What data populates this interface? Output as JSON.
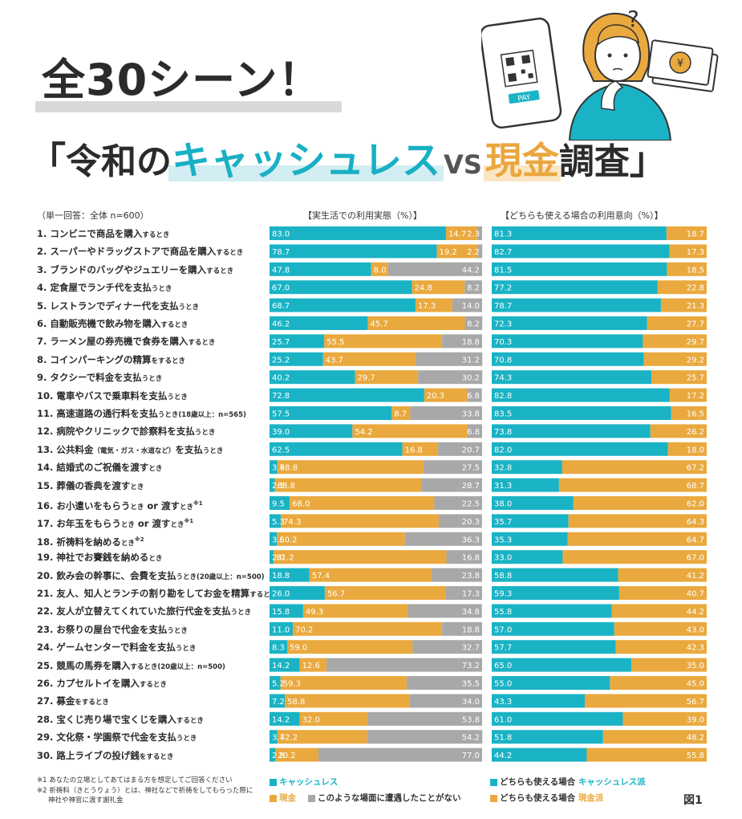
{
  "title": {
    "line1": "全30シーン！",
    "bracket_open": "「",
    "part1": "令和の",
    "cashless_word": "キャッシュレス",
    "vs": "VS",
    "cash_word": "現金",
    "part2": "調査",
    "bracket_close": "」"
  },
  "illustration": {
    "phone_label": "PAY",
    "question": "?",
    "yen": "¥"
  },
  "basis_note": "（単一回答：全体 n=600）",
  "colors": {
    "cashless": "#1ab3c5",
    "cash": "#eaa93e",
    "none": "#a8a8a8",
    "text_on_bar": "#ffffff"
  },
  "chart_data": [
    {
      "type": "bar",
      "orientation": "horizontal",
      "stacked": true,
      "title": "【実生活での利用実態（%）】",
      "series": [
        {
          "name": "キャッシュレス",
          "color": "#1ab3c5",
          "values": [
            83.0,
            78.7,
            47.8,
            67.0,
            68.7,
            46.2,
            25.7,
            25.2,
            40.2,
            72.8,
            57.5,
            39.0,
            62.5,
            3.7,
            2.5,
            9.5,
            5.3,
            3.5,
            2.0,
            18.8,
            26.0,
            15.8,
            11.0,
            8.3,
            14.2,
            5.2,
            7.2,
            14.2,
            3.7,
            2.8
          ]
        },
        {
          "name": "現金",
          "color": "#eaa93e",
          "values": [
            14.7,
            19.2,
            8.0,
            24.8,
            17.3,
            45.7,
            55.5,
            43.7,
            29.7,
            20.3,
            8.7,
            54.2,
            16.8,
            68.8,
            68.8,
            68.0,
            74.3,
            60.2,
            81.2,
            57.4,
            56.7,
            49.3,
            70.2,
            59.0,
            12.6,
            59.3,
            58.8,
            32.0,
            42.2,
            20.2
          ]
        },
        {
          "name": "このような場面に遭遇したことがない",
          "color": "#a8a8a8",
          "values": [
            2.3,
            2.2,
            44.2,
            8.2,
            14.0,
            8.2,
            18.8,
            31.2,
            30.2,
            6.8,
            33.8,
            6.8,
            20.7,
            27.5,
            28.7,
            22.5,
            20.3,
            36.3,
            16.8,
            23.8,
            17.3,
            34.8,
            18.8,
            32.7,
            73.2,
            35.5,
            34.0,
            53.8,
            54.2,
            77.0
          ]
        }
      ]
    },
    {
      "type": "bar",
      "orientation": "horizontal",
      "stacked": true,
      "title": "【どちらも使える場合の利用意向（%）】",
      "series": [
        {
          "name": "どちらも使える場合 キャッシュレス派",
          "color": "#1ab3c5",
          "values": [
            81.3,
            82.7,
            81.5,
            77.2,
            78.7,
            72.3,
            70.3,
            70.8,
            74.3,
            82.8,
            83.5,
            73.8,
            82.0,
            32.8,
            31.3,
            38.0,
            35.7,
            35.3,
            33.0,
            58.8,
            59.3,
            55.8,
            57.0,
            57.7,
            65.0,
            55.0,
            43.3,
            61.0,
            51.8,
            44.2
          ]
        },
        {
          "name": "どちらも使える場合 現金派",
          "color": "#eaa93e",
          "values": [
            18.7,
            17.3,
            18.5,
            22.8,
            21.3,
            27.7,
            29.7,
            29.2,
            25.7,
            17.2,
            16.5,
            26.2,
            18.0,
            67.2,
            68.7,
            62.0,
            64.3,
            64.7,
            67.0,
            41.2,
            40.7,
            44.2,
            43.0,
            42.3,
            35.0,
            45.0,
            56.7,
            39.0,
            48.2,
            55.8
          ]
        }
      ]
    }
  ],
  "rows": [
    {
      "main": "1. コンビニで商品を購入",
      "small": "するとき",
      "tail": "",
      "sup": ""
    },
    {
      "main": "2. スーパーやドラッグストアで商品を購入",
      "small": "するとき",
      "tail": "",
      "sup": ""
    },
    {
      "main": "3. ブランドのバッグやジュエリーを購入",
      "small": "するとき",
      "tail": "",
      "sup": ""
    },
    {
      "main": "4. 定食屋でランチ代を支払",
      "small": "うとき",
      "tail": "",
      "sup": ""
    },
    {
      "main": "5. レストランでディナー代を支払",
      "small": "うとき",
      "tail": "",
      "sup": ""
    },
    {
      "main": "6. 自動販売機で飲み物を購入",
      "small": "するとき",
      "tail": "",
      "sup": ""
    },
    {
      "main": "7. ラーメン屋の券売機で食券を購入",
      "small": "するとき",
      "tail": "",
      "sup": ""
    },
    {
      "main": "8. コインパーキングの精算",
      "small": "をするとき",
      "tail": "",
      "sup": ""
    },
    {
      "main": "9. タクシーで料金を支払",
      "small": "うとき",
      "tail": "",
      "sup": ""
    },
    {
      "main": "10. 電車やバスで乗車料を支払",
      "small": "うとき",
      "tail": "",
      "sup": ""
    },
    {
      "main": "11. 高速道路の通行料を支払",
      "small": "うとき(18歳以上：n=565)",
      "tail": "",
      "sup": ""
    },
    {
      "main": "12. 病院やクリニックで診察料を支払",
      "small": "うとき",
      "tail": "",
      "sup": ""
    },
    {
      "main": "13. 公共料金",
      "small": "（電気・ガス・水道など）",
      "tail": "を支払",
      "small2": "うとき",
      "sup": ""
    },
    {
      "main": "14. 結婚式のご祝儀を渡す",
      "small": "とき",
      "tail": "",
      "sup": ""
    },
    {
      "main": "15. 葬儀の香典を渡す",
      "small": "とき",
      "tail": "",
      "sup": ""
    },
    {
      "main": "16. お小遣いをもらう",
      "small": "とき",
      "tail": " or 渡す",
      "small2": "とき",
      "sup": "※1"
    },
    {
      "main": "17. お年玉をもらう",
      "small": "とき",
      "tail": " or 渡す",
      "small2": "とき",
      "sup": "※1"
    },
    {
      "main": "18. 祈祷料を納める",
      "small": "とき",
      "tail": "",
      "sup": "※2"
    },
    {
      "main": "19. 神社でお賽銭を納める",
      "small": "とき",
      "tail": "",
      "sup": ""
    },
    {
      "main": "20. 飲み会の幹事に、会費を支払",
      "small": "うとき(20歳以上：n=500)",
      "tail": "",
      "sup": ""
    },
    {
      "main": "21. 友人、知人とランチの割り勘をしてお金を精算",
      "small": "するとき",
      "tail": "",
      "sup": ""
    },
    {
      "main": "22. 友人が立替えてくれていた旅行代金を支払",
      "small": "うとき",
      "tail": "",
      "sup": ""
    },
    {
      "main": "23. お祭りの屋台で代金を支払",
      "small": "うとき",
      "tail": "",
      "sup": ""
    },
    {
      "main": "24. ゲームセンターで料金を支払",
      "small": "うとき",
      "tail": "",
      "sup": ""
    },
    {
      "main": "25. 競馬の馬券を購入",
      "small": "するとき(20歳以上：n=500)",
      "tail": "",
      "sup": ""
    },
    {
      "main": "26. カプセルトイを購入",
      "small": "するとき",
      "tail": "",
      "sup": ""
    },
    {
      "main": "27. 募金",
      "small": "をするとき",
      "tail": "",
      "sup": ""
    },
    {
      "main": "28. 宝くじ売り場で宝くじを購入",
      "small": "するとき",
      "tail": "",
      "sup": ""
    },
    {
      "main": "29. 文化祭・学園祭で代金を支払",
      "small": "うとき",
      "tail": "",
      "sup": ""
    },
    {
      "main": "30. 路上ライブの投げ銭",
      "small": "をするとき",
      "tail": "",
      "sup": ""
    }
  ],
  "legend_left": {
    "cashless": "キャッシュレス",
    "cash": "現金",
    "none": "このような場面に遭遇したことがない"
  },
  "legend_right": {
    "cashless_prefix": "どちらも使える場合",
    "cashless_suffix": "キャッシュレス派",
    "cash_prefix": "どちらも使える場合",
    "cash_suffix": "現金派"
  },
  "footnotes": [
    "※1 あなたの立場としてあてはまる方を想定してご回答ください",
    "※2 祈祷料（きとうりょう）とは、神社などで祈祷をしてもらった際に",
    "神社や神官に渡す謝礼金"
  ],
  "figure_label": "図1"
}
